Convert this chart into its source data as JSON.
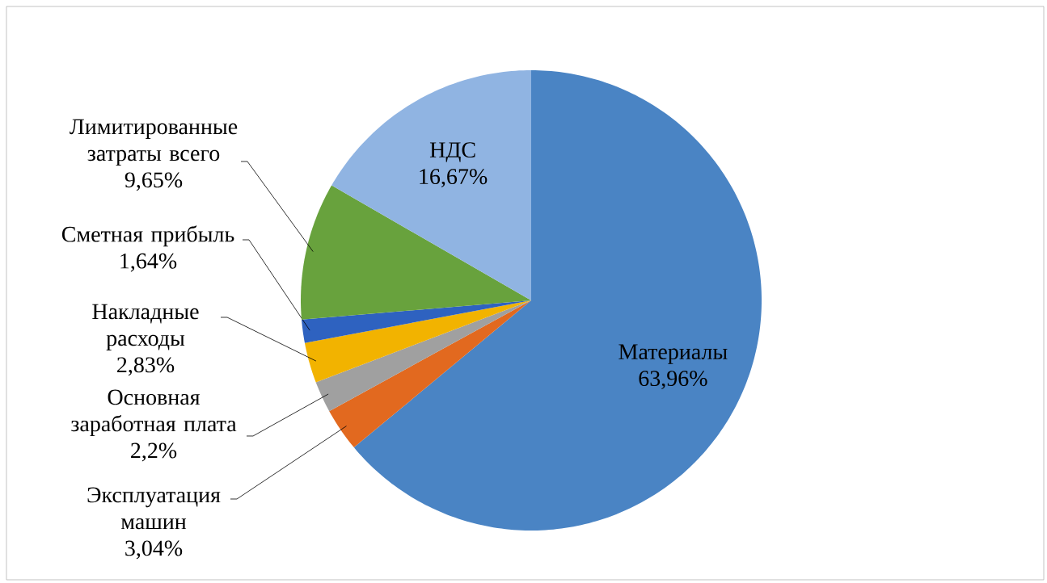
{
  "chart_data": {
    "type": "pie",
    "categories": [
      "Материалы",
      "Эксплуатация машин",
      "Основная заработная плата",
      "Накладные расходы",
      "Сметная прибыль",
      "Лимитированные затраты всего",
      "НДС"
    ],
    "values": [
      63.96,
      3.04,
      2.2,
      2.83,
      1.64,
      9.65,
      16.67
    ],
    "colors": [
      "#4a84c4",
      "#e2691f",
      "#a0a0a0",
      "#f2b300",
      "#2e62c0",
      "#68a23d",
      "#90b4e2"
    ],
    "value_labels": [
      "63,96%",
      "3,04%",
      "2,2%",
      "2,83%",
      "1,64%",
      "9,65%",
      "16,67%"
    ]
  }
}
